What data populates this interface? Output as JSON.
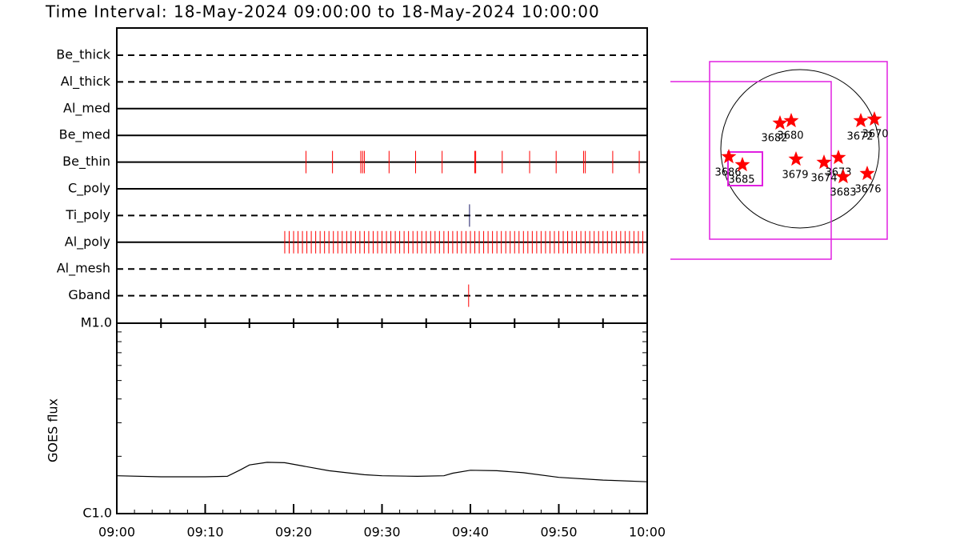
{
  "title": "Time Interval: 18-May-2024 09:00:00 to 18-May-2024 10:00:00",
  "chart_data": [
    {
      "type": "timeline",
      "xlim": [
        0,
        60
      ],
      "xticks": [
        {
          "value": 0,
          "label": "09:00"
        },
        {
          "value": 10,
          "label": "09:10"
        },
        {
          "value": 20,
          "label": "09:20"
        },
        {
          "value": 30,
          "label": "09:30"
        },
        {
          "value": 40,
          "label": "09:40"
        },
        {
          "value": 50,
          "label": "09:50"
        },
        {
          "value": 60,
          "label": "10:00"
        }
      ],
      "series": [
        {
          "name": "Be_thick",
          "line": "dashed",
          "color": "#ff0000",
          "x": []
        },
        {
          "name": "Al_thick",
          "line": "dashed",
          "color": "#ff0000",
          "x": []
        },
        {
          "name": "Al_med",
          "line": "solid",
          "color": "#ff0000",
          "x": []
        },
        {
          "name": "Be_med",
          "line": "solid",
          "color": "#ff0000",
          "x": []
        },
        {
          "name": "Be_thin",
          "line": "solid",
          "color": "#ff0000",
          "x": [
            21.4,
            24.4,
            27.6,
            27.8,
            28.0,
            30.8,
            33.8,
            36.8,
            40.5,
            40.6,
            43.6,
            46.7,
            49.7,
            52.8,
            53.0,
            56.1,
            59.1
          ]
        },
        {
          "name": "C_poly",
          "line": "solid",
          "color": "#ff0000",
          "x": []
        },
        {
          "name": "Ti_poly",
          "line": "dashed",
          "color": "#1a1a66",
          "x": [
            39.9
          ]
        },
        {
          "name": "Al_poly",
          "line": "solid",
          "color": "#ff0000",
          "x": [
            19.0,
            19.5,
            20.0,
            20.5,
            21.0,
            21.5,
            22.0,
            22.5,
            23.0,
            23.5,
            24.0,
            24.5,
            25.0,
            25.5,
            26.0,
            26.5,
            27.0,
            27.5,
            28.0,
            28.5,
            29.0,
            29.5,
            30.0,
            30.5,
            31.0,
            31.5,
            32.0,
            32.5,
            33.0,
            33.5,
            34.0,
            34.5,
            35.0,
            35.5,
            36.0,
            36.5,
            37.0,
            37.5,
            38.0,
            38.5,
            39.0,
            39.5,
            40.0,
            40.5,
            41.0,
            41.5,
            42.0,
            42.5,
            43.0,
            43.5,
            44.0,
            44.5,
            45.0,
            45.5,
            46.0,
            46.5,
            47.0,
            47.5,
            48.0,
            48.5,
            49.0,
            49.5,
            50.0,
            50.5,
            51.0,
            51.5,
            52.0,
            52.5,
            53.0,
            53.5,
            54.0,
            54.5,
            55.0,
            55.5,
            56.0,
            56.5,
            57.0,
            57.5,
            58.0,
            58.5,
            59.0,
            59.5
          ]
        },
        {
          "name": "Al_mesh",
          "line": "dashed",
          "color": "#ff0000",
          "x": []
        },
        {
          "name": "Gband",
          "line": "dashed",
          "color": "#ff0000",
          "x": [
            39.8
          ]
        }
      ]
    },
    {
      "type": "line",
      "ylabel": "GOES flux",
      "xlim": [
        0,
        60
      ],
      "xticks": [
        {
          "value": 0,
          "label": "09:00"
        },
        {
          "value": 10,
          "label": "09:10"
        },
        {
          "value": 20,
          "label": "09:20"
        },
        {
          "value": 30,
          "label": "09:30"
        },
        {
          "value": 40,
          "label": "09:40"
        },
        {
          "value": 50,
          "label": "09:50"
        },
        {
          "value": 60,
          "label": "10:00"
        }
      ],
      "ylim": [
        1e-06,
        1e-05
      ],
      "log_scale": true,
      "yticks": [
        {
          "value": 1e-06,
          "label": "C1.0"
        },
        {
          "value": 1e-05,
          "label": "M1.0"
        }
      ],
      "color": "#000000",
      "x": [
        0,
        5,
        10,
        12.5,
        14,
        15,
        17,
        19,
        21,
        24,
        28,
        30,
        34,
        37,
        38,
        40,
        43,
        46,
        50,
        55,
        60
      ],
      "values": [
        1.58e-06,
        1.56e-06,
        1.56e-06,
        1.57e-06,
        1.7e-06,
        1.8e-06,
        1.86e-06,
        1.85e-06,
        1.78e-06,
        1.68e-06,
        1.6e-06,
        1.58e-06,
        1.57e-06,
        1.58e-06,
        1.63e-06,
        1.69e-06,
        1.68e-06,
        1.64e-06,
        1.55e-06,
        1.5e-06,
        1.47e-06
      ]
    }
  ],
  "map": {
    "regions": [
      "3682",
      "3680",
      "3672",
      "3670",
      "3686",
      "3685",
      "3679",
      "3674",
      "3673",
      "3683",
      "3676"
    ]
  }
}
